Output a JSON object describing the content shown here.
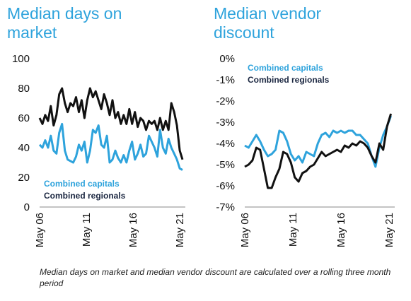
{
  "colors": {
    "capitals": "#2ea3dc",
    "regionals": "#111111",
    "title": "#2ea3dc"
  },
  "chart_data": [
    {
      "type": "line",
      "title": "Median days on market",
      "xlabel": "",
      "ylabel": "",
      "xlim": [
        2006.0,
        2021.6
      ],
      "ylim": [
        0,
        100
      ],
      "y_ticks": [
        "0",
        "20",
        "40",
        "60",
        "80",
        "100"
      ],
      "x_ticks": [
        "May 06",
        "May 11",
        "May 16",
        "May 21"
      ],
      "grid": false,
      "legend": "bottom-left",
      "series": [
        {
          "name": "Combined capitals",
          "color": "#2ea3dc",
          "x": [
            2006.0,
            2006.3,
            2006.6,
            2006.9,
            2007.2,
            2007.5,
            2007.8,
            2008.1,
            2008.4,
            2008.7,
            2009.0,
            2009.3,
            2009.6,
            2009.9,
            2010.2,
            2010.5,
            2010.8,
            2011.1,
            2011.4,
            2011.7,
            2012.0,
            2012.3,
            2012.6,
            2012.9,
            2013.2,
            2013.5,
            2013.8,
            2014.1,
            2014.4,
            2014.7,
            2015.0,
            2015.3,
            2015.6,
            2015.9,
            2016.2,
            2016.5,
            2016.8,
            2017.1,
            2017.4,
            2017.7,
            2018.0,
            2018.3,
            2018.6,
            2018.9,
            2019.2,
            2019.5,
            2019.8,
            2020.1,
            2020.4,
            2020.7,
            2021.0,
            2021.3
          ],
          "y": [
            42,
            40,
            45,
            40,
            48,
            38,
            36,
            50,
            56,
            38,
            32,
            31,
            30,
            34,
            42,
            38,
            44,
            30,
            38,
            52,
            50,
            55,
            42,
            40,
            48,
            30,
            32,
            38,
            33,
            30,
            35,
            30,
            38,
            44,
            32,
            36,
            42,
            34,
            36,
            48,
            44,
            40,
            34,
            52,
            40,
            36,
            46,
            40,
            36,
            32,
            26,
            25
          ]
        },
        {
          "name": "Combined regionals",
          "color": "#111111",
          "x": [
            2006.0,
            2006.3,
            2006.6,
            2006.9,
            2007.2,
            2007.5,
            2007.8,
            2008.1,
            2008.4,
            2008.7,
            2009.0,
            2009.3,
            2009.6,
            2009.9,
            2010.2,
            2010.5,
            2010.8,
            2011.1,
            2011.4,
            2011.7,
            2012.0,
            2012.3,
            2012.6,
            2012.9,
            2013.2,
            2013.5,
            2013.8,
            2014.1,
            2014.4,
            2014.7,
            2015.0,
            2015.3,
            2015.6,
            2015.9,
            2016.2,
            2016.5,
            2016.8,
            2017.1,
            2017.4,
            2017.7,
            2018.0,
            2018.3,
            2018.6,
            2018.9,
            2019.2,
            2019.5,
            2019.8,
            2020.1,
            2020.4,
            2020.7,
            2021.0,
            2021.3
          ],
          "y": [
            60,
            56,
            62,
            58,
            68,
            55,
            62,
            76,
            80,
            70,
            64,
            70,
            68,
            74,
            64,
            72,
            60,
            72,
            80,
            74,
            78,
            72,
            66,
            76,
            70,
            62,
            72,
            60,
            64,
            56,
            62,
            56,
            66,
            56,
            64,
            54,
            60,
            58,
            52,
            58,
            56,
            58,
            52,
            60,
            52,
            58,
            52,
            70,
            64,
            55,
            38,
            32
          ]
        }
      ]
    },
    {
      "type": "line",
      "title": "Median vendor discount",
      "xlabel": "",
      "ylabel": "",
      "xlim": [
        2006.0,
        2021.6
      ],
      "ylim": [
        -7,
        0
      ],
      "y_ticks": [
        "0%",
        "-1%",
        "-2%",
        "-3%",
        "-4%",
        "-5%",
        "-6%",
        "-7%"
      ],
      "x_ticks": [
        "May 06",
        "May 11",
        "May 16",
        "May 21"
      ],
      "grid": false,
      "legend": "top-left",
      "series": [
        {
          "name": "Combined capitals",
          "color": "#2ea3dc",
          "x": [
            2006.0,
            2006.4,
            2006.8,
            2007.2,
            2007.6,
            2008.0,
            2008.4,
            2008.8,
            2009.2,
            2009.6,
            2010.0,
            2010.4,
            2010.8,
            2011.2,
            2011.6,
            2012.0,
            2012.4,
            2012.8,
            2013.2,
            2013.6,
            2014.0,
            2014.4,
            2014.8,
            2015.2,
            2015.6,
            2016.0,
            2016.4,
            2016.8,
            2017.2,
            2017.6,
            2018.0,
            2018.4,
            2018.8,
            2019.2,
            2019.6,
            2020.0,
            2020.4,
            2020.8,
            2021.2
          ],
          "y": [
            -4.1,
            -4.2,
            -3.9,
            -3.6,
            -3.9,
            -4.3,
            -4.6,
            -4.5,
            -4.3,
            -3.4,
            -3.5,
            -3.9,
            -4.5,
            -4.8,
            -4.6,
            -4.9,
            -4.4,
            -4.5,
            -4.6,
            -4.0,
            -3.6,
            -3.5,
            -3.7,
            -3.4,
            -3.5,
            -3.4,
            -3.5,
            -3.4,
            -3.4,
            -3.6,
            -3.6,
            -3.8,
            -4.0,
            -4.6,
            -5.1,
            -4.2,
            -3.6,
            -3.2,
            -2.7
          ]
        },
        {
          "name": "Combined regionals",
          "color": "#111111",
          "x": [
            2006.0,
            2006.4,
            2006.8,
            2007.2,
            2007.6,
            2008.0,
            2008.4,
            2008.8,
            2009.2,
            2009.6,
            2010.0,
            2010.4,
            2010.8,
            2011.2,
            2011.6,
            2012.0,
            2012.4,
            2012.8,
            2013.2,
            2013.6,
            2014.0,
            2014.4,
            2014.8,
            2015.2,
            2015.6,
            2016.0,
            2016.4,
            2016.8,
            2017.2,
            2017.6,
            2018.0,
            2018.4,
            2018.8,
            2019.2,
            2019.6,
            2020.0,
            2020.4,
            2020.8,
            2021.2
          ],
          "y": [
            -5.1,
            -5.0,
            -4.8,
            -4.2,
            -4.3,
            -5.2,
            -6.1,
            -6.1,
            -5.6,
            -5.2,
            -4.4,
            -4.5,
            -4.9,
            -5.6,
            -5.8,
            -5.4,
            -5.3,
            -5.1,
            -5.0,
            -4.7,
            -4.4,
            -4.6,
            -4.5,
            -4.4,
            -4.3,
            -4.4,
            -4.1,
            -4.2,
            -4.0,
            -4.1,
            -3.9,
            -4.0,
            -4.2,
            -4.6,
            -4.9,
            -4.0,
            -4.3,
            -3.2,
            -2.6
          ]
        }
      ]
    }
  ],
  "footnote": "Median days on market and median vendor discount are calculated over a rolling three month period"
}
